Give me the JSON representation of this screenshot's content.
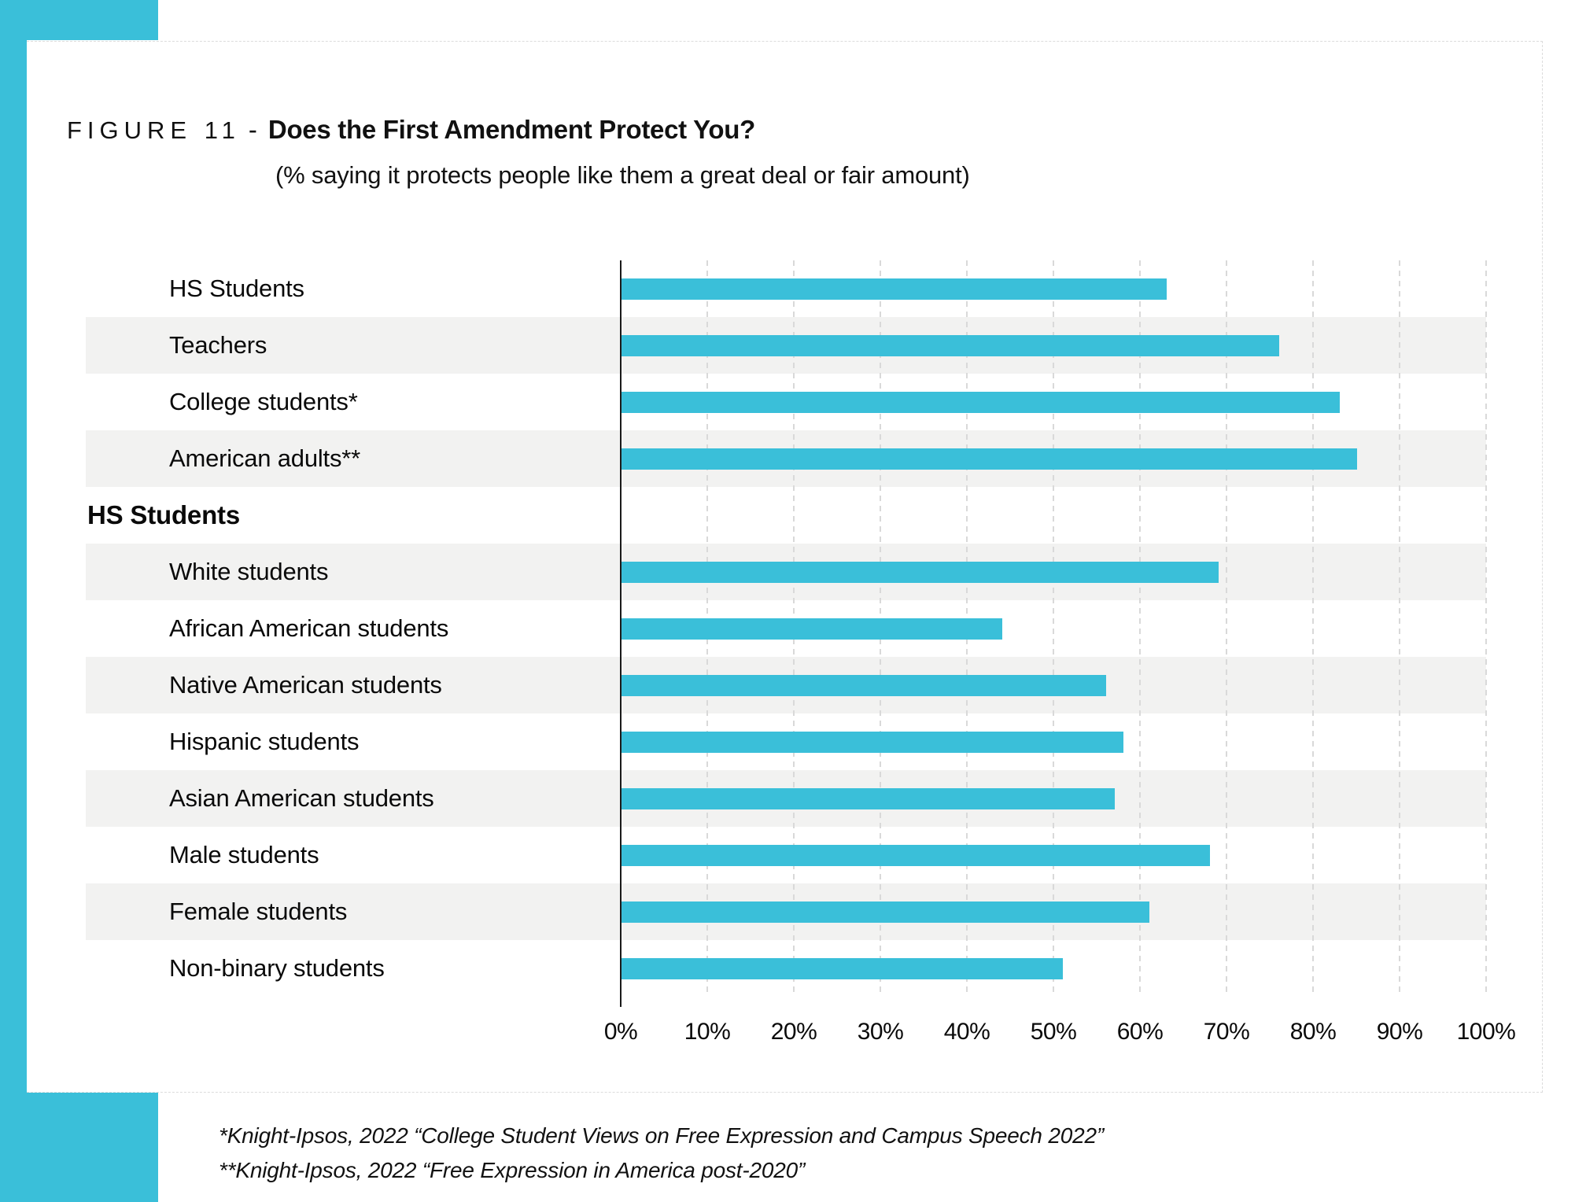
{
  "figure": {
    "label": "FIGURE 11",
    "separator": "-",
    "title": "Does the First Amendment Protect You?",
    "subtitle": "(% saying it protects people like them a great deal or fair amount)"
  },
  "chart_data": {
    "type": "bar",
    "orientation": "horizontal",
    "title": "Does the First Amendment Protect You?",
    "subtitle": "(% saying it protects people like them a great deal or fair amount)",
    "xlabel": "",
    "ylabel": "",
    "xlim": [
      0,
      100
    ],
    "x_ticks": [
      "0%",
      "10%",
      "20%",
      "30%",
      "40%",
      "50%",
      "60%",
      "70%",
      "80%",
      "90%",
      "100%"
    ],
    "grid": "vertical-dashed",
    "legend": "none",
    "bar_color": "#3ABFD9",
    "rows": [
      {
        "label": "HS Students",
        "value": 63,
        "type": "bar"
      },
      {
        "label": "Teachers",
        "value": 76,
        "type": "bar"
      },
      {
        "label": "College students*",
        "value": 83,
        "type": "bar"
      },
      {
        "label": "American adults**",
        "value": 85,
        "type": "bar"
      },
      {
        "label": "HS Students",
        "value": null,
        "type": "group-header"
      },
      {
        "label": "White students",
        "value": 69,
        "type": "bar"
      },
      {
        "label": "African American students",
        "value": 44,
        "type": "bar"
      },
      {
        "label": "Native American students",
        "value": 56,
        "type": "bar"
      },
      {
        "label": "Hispanic students",
        "value": 58,
        "type": "bar"
      },
      {
        "label": "Asian American students",
        "value": 57,
        "type": "bar"
      },
      {
        "label": "Male students",
        "value": 68,
        "type": "bar"
      },
      {
        "label": "Female students",
        "value": 61,
        "type": "bar"
      },
      {
        "label": "Non-binary students",
        "value": 51,
        "type": "bar"
      }
    ]
  },
  "footnotes": [
    "*Knight-Ipsos, 2022 “College Student Views on Free Expression and Campus Speech 2022”",
    "**Knight-Ipsos, 2022 “Free Expression in America post-2020”"
  ],
  "colors": {
    "accent_teal": "#3ABFD9",
    "stripe_gray": "#F2F2F1",
    "gridline_gray": "#D9D9D9",
    "axis_line": "#1A1A1A",
    "text": "#111111",
    "card_border": "#DCDCDC"
  }
}
